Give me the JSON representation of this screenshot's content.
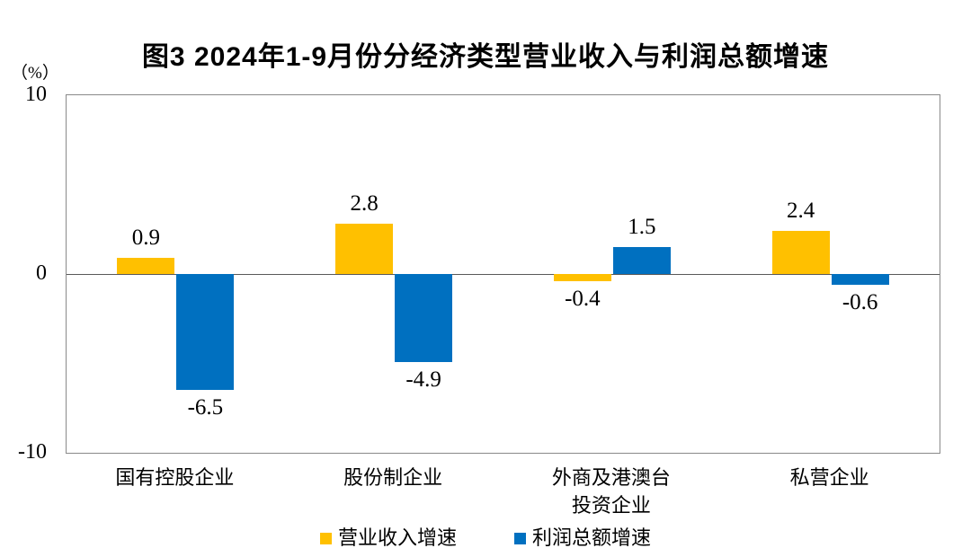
{
  "title": "图3 2024年1-9月份分经济类型营业收入与利润总额增速",
  "y_axis": {
    "unit_label": "（%）"
  },
  "chart_data": {
    "type": "bar",
    "title": "图3 2024年1-9月份分经济类型营业收入与利润总额增速",
    "ylabel": "（%）",
    "ylim": [
      -10,
      10
    ],
    "yticks": [
      10,
      0,
      -10
    ],
    "grid": false,
    "legend_position": "bottom",
    "categories": [
      "国有控股企业",
      "股份制企业",
      "外商及港澳台\n投资企业",
      "私营企业"
    ],
    "series": [
      {
        "name": "营业收入增速",
        "color": "#FFC000",
        "values": [
          0.9,
          2.8,
          -0.4,
          2.4
        ],
        "labels": [
          "0.9",
          "2.8",
          "-0.4",
          "2.4"
        ]
      },
      {
        "name": "利润总额增速",
        "color": "#0070C0",
        "values": [
          -6.5,
          -4.9,
          1.5,
          -0.6
        ],
        "labels": [
          "-6.5",
          "-4.9",
          "1.5",
          "-0.6"
        ]
      }
    ]
  },
  "legend": {
    "items": [
      {
        "label": "营业收入增速",
        "color": "#FFC000"
      },
      {
        "label": "利润总额增速",
        "color": "#0070C0"
      }
    ]
  }
}
